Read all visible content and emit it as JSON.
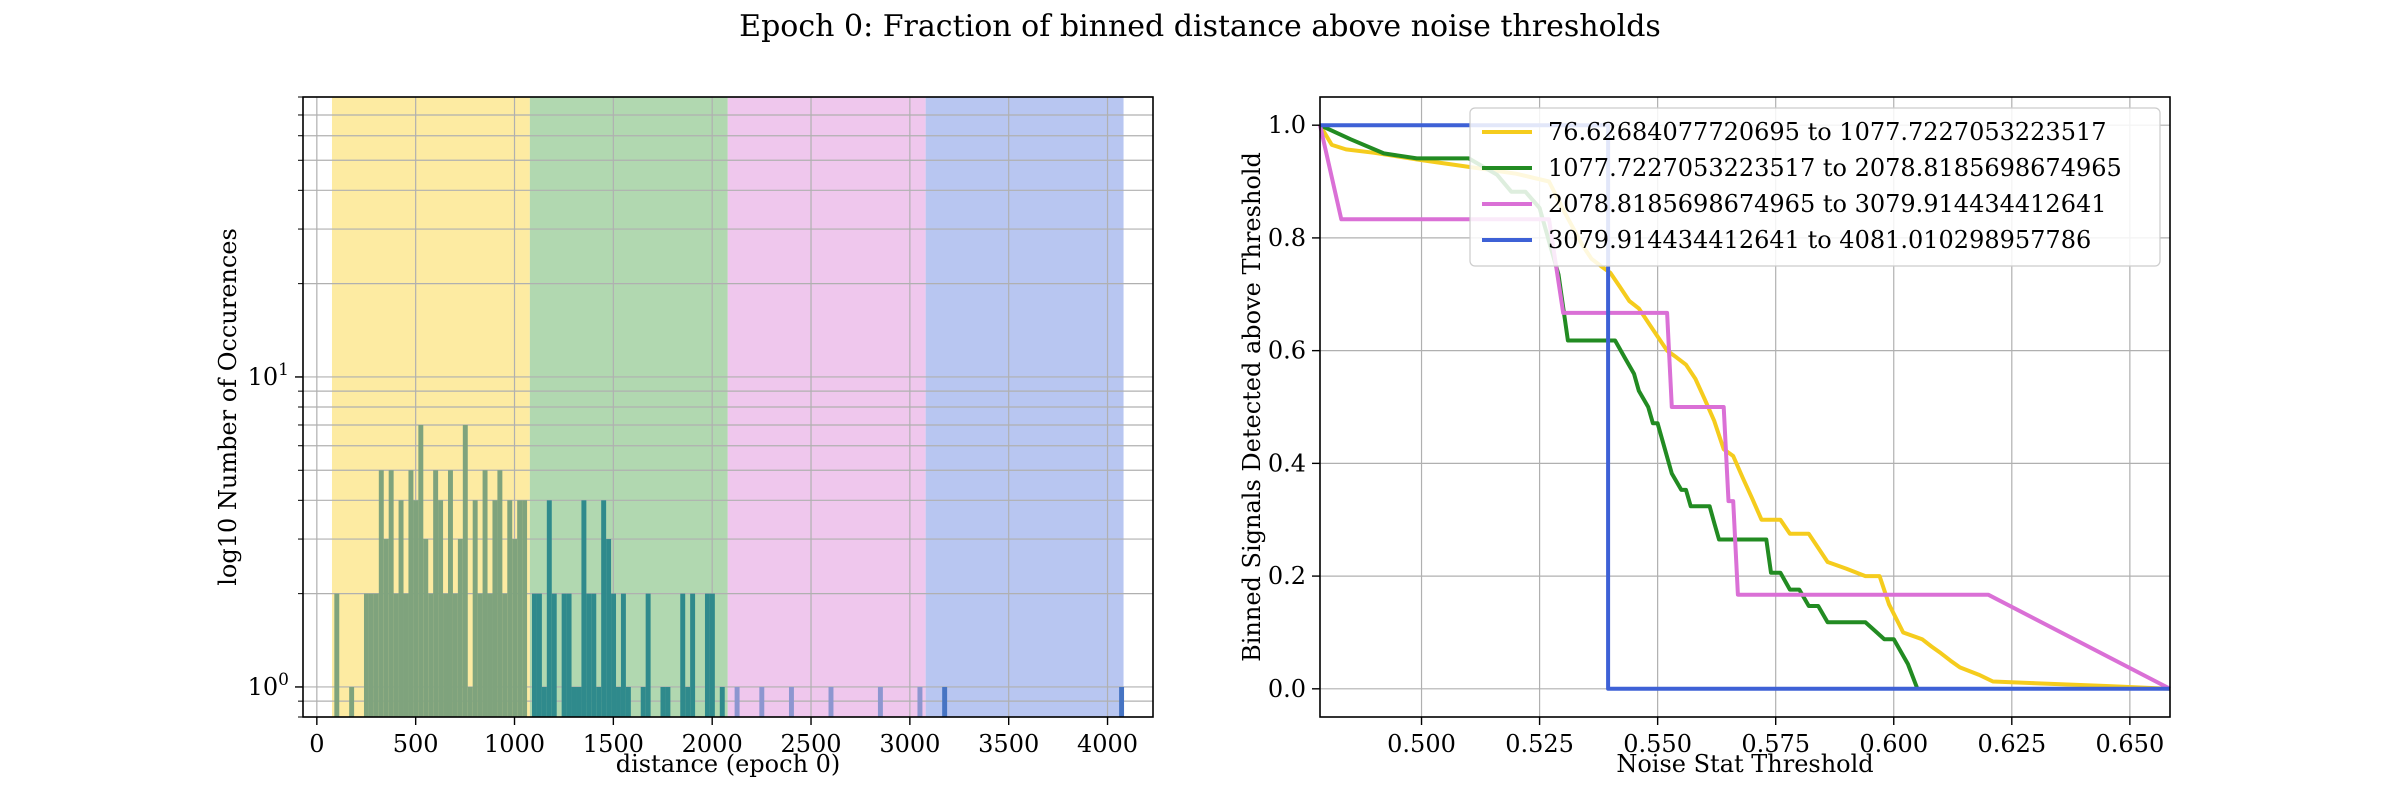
{
  "figure_title": "Epoch 0: Fraction of binned distance above noise thresholds",
  "chart_data": [
    {
      "type": "bar",
      "title": "",
      "xlabel": "distance (epoch 0)",
      "ylabel": "log10 Number of Occurences",
      "yscale": "log",
      "xlim": [
        -70,
        4230
      ],
      "ylim": [
        0.8,
        80
      ],
      "xticks": [
        0,
        500,
        1000,
        1500,
        2000,
        2500,
        3000,
        3500,
        4000
      ],
      "yticks": [
        {
          "value": 1,
          "base": "10",
          "exp": "0"
        },
        {
          "value": 10,
          "base": "10",
          "exp": "1"
        }
      ],
      "grid": true,
      "bands": [
        {
          "range": [
            76.6,
            1077.7
          ],
          "color": "#fdeba2"
        },
        {
          "range": [
            1077.7,
            2078.8
          ],
          "color": "#b1d8b0"
        },
        {
          "range": [
            2078.8,
            3079.9
          ],
          "color": "#efc7ed"
        },
        {
          "range": [
            3079.9,
            4081.0
          ],
          "color": "#b8c6f1"
        }
      ],
      "bar_colors": [
        "#7fa37d",
        "#2f8a8c",
        "#8d96d0",
        "#4674c3"
      ],
      "bars": [
        {
          "x": 101,
          "count": 2
        },
        {
          "x": 176,
          "count": 1
        },
        {
          "x": 251,
          "count": 2
        },
        {
          "x": 276,
          "count": 2
        },
        {
          "x": 301,
          "count": 2
        },
        {
          "x": 326,
          "count": 5
        },
        {
          "x": 351,
          "count": 3
        },
        {
          "x": 376,
          "count": 5
        },
        {
          "x": 401,
          "count": 2
        },
        {
          "x": 426,
          "count": 4
        },
        {
          "x": 451,
          "count": 2
        },
        {
          "x": 476,
          "count": 5
        },
        {
          "x": 501,
          "count": 4
        },
        {
          "x": 526,
          "count": 7
        },
        {
          "x": 551,
          "count": 3
        },
        {
          "x": 576,
          "count": 2
        },
        {
          "x": 601,
          "count": 5
        },
        {
          "x": 626,
          "count": 4
        },
        {
          "x": 651,
          "count": 2
        },
        {
          "x": 676,
          "count": 5
        },
        {
          "x": 701,
          "count": 2
        },
        {
          "x": 726,
          "count": 3
        },
        {
          "x": 751,
          "count": 7
        },
        {
          "x": 776,
          "count": 1
        },
        {
          "x": 801,
          "count": 4
        },
        {
          "x": 826,
          "count": 2
        },
        {
          "x": 851,
          "count": 5
        },
        {
          "x": 876,
          "count": 2
        },
        {
          "x": 901,
          "count": 4
        },
        {
          "x": 926,
          "count": 5
        },
        {
          "x": 951,
          "count": 2
        },
        {
          "x": 976,
          "count": 4
        },
        {
          "x": 1001,
          "count": 3
        },
        {
          "x": 1026,
          "count": 4
        },
        {
          "x": 1051,
          "count": 4
        },
        {
          "x": 1101,
          "count": 2
        },
        {
          "x": 1126,
          "count": 2
        },
        {
          "x": 1151,
          "count": 1
        },
        {
          "x": 1176,
          "count": 4
        },
        {
          "x": 1201,
          "count": 2
        },
        {
          "x": 1251,
          "count": 2
        },
        {
          "x": 1276,
          "count": 2
        },
        {
          "x": 1301,
          "count": 1
        },
        {
          "x": 1326,
          "count": 1
        },
        {
          "x": 1351,
          "count": 4
        },
        {
          "x": 1376,
          "count": 2
        },
        {
          "x": 1401,
          "count": 2
        },
        {
          "x": 1426,
          "count": 1
        },
        {
          "x": 1451,
          "count": 4
        },
        {
          "x": 1476,
          "count": 3
        },
        {
          "x": 1501,
          "count": 2
        },
        {
          "x": 1526,
          "count": 1
        },
        {
          "x": 1551,
          "count": 2
        },
        {
          "x": 1576,
          "count": 1
        },
        {
          "x": 1651,
          "count": 1
        },
        {
          "x": 1676,
          "count": 2
        },
        {
          "x": 1751,
          "count": 1
        },
        {
          "x": 1776,
          "count": 1
        },
        {
          "x": 1851,
          "count": 2
        },
        {
          "x": 1876,
          "count": 1
        },
        {
          "x": 1901,
          "count": 2
        },
        {
          "x": 1976,
          "count": 2
        },
        {
          "x": 2001,
          "count": 2
        },
        {
          "x": 2051,
          "count": 1
        },
        {
          "x": 2126,
          "count": 1
        },
        {
          "x": 2251,
          "count": 1
        },
        {
          "x": 2401,
          "count": 1
        },
        {
          "x": 2601,
          "count": 1
        },
        {
          "x": 2851,
          "count": 1
        },
        {
          "x": 3051,
          "count": 1
        },
        {
          "x": 3176,
          "count": 1
        },
        {
          "x": 4071,
          "count": 1
        }
      ]
    },
    {
      "type": "line",
      "title": "",
      "xlabel": "Noise Stat Threshold",
      "ylabel": "Binned Signals Detected above Threshold",
      "xlim": [
        0.4785,
        0.6585
      ],
      "ylim": [
        -0.05,
        1.05
      ],
      "xticks": [
        0.5,
        0.525,
        0.55,
        0.575,
        0.6,
        0.625,
        0.65
      ],
      "xtick_labels": [
        "0.500",
        "0.525",
        "0.550",
        "0.575",
        "0.600",
        "0.625",
        "0.650"
      ],
      "yticks": [
        0.0,
        0.2,
        0.4,
        0.6,
        0.8,
        1.0
      ],
      "ytick_labels": [
        "0.0",
        "0.2",
        "0.4",
        "0.6",
        "0.8",
        "1.0"
      ],
      "grid": true,
      "legend_position": "top-right",
      "series": [
        {
          "name": "76.62684077720695 to 1077.7227053223517",
          "color": "#f5cc1d",
          "points": [
            [
              0.4785,
              1.0
            ],
            [
              0.481,
              0.965
            ],
            [
              0.484,
              0.957
            ],
            [
              0.49,
              0.951
            ],
            [
              0.5,
              0.938
            ],
            [
              0.51,
              0.926
            ],
            [
              0.52,
              0.914
            ],
            [
              0.527,
              0.9
            ],
            [
              0.53,
              0.85
            ],
            [
              0.534,
              0.788
            ],
            [
              0.536,
              0.763
            ],
            [
              0.538,
              0.75
            ],
            [
              0.54,
              0.738
            ],
            [
              0.542,
              0.713
            ],
            [
              0.544,
              0.688
            ],
            [
              0.546,
              0.675
            ],
            [
              0.548,
              0.65
            ],
            [
              0.55,
              0.625
            ],
            [
              0.552,
              0.6
            ],
            [
              0.554,
              0.588
            ],
            [
              0.556,
              0.575
            ],
            [
              0.558,
              0.55
            ],
            [
              0.56,
              0.513
            ],
            [
              0.562,
              0.475
            ],
            [
              0.564,
              0.425
            ],
            [
              0.566,
              0.413
            ],
            [
              0.568,
              0.375
            ],
            [
              0.57,
              0.338
            ],
            [
              0.572,
              0.3
            ],
            [
              0.576,
              0.3
            ],
            [
              0.578,
              0.275
            ],
            [
              0.582,
              0.275
            ],
            [
              0.584,
              0.25
            ],
            [
              0.586,
              0.225
            ],
            [
              0.59,
              0.213
            ],
            [
              0.594,
              0.2
            ],
            [
              0.597,
              0.2
            ],
            [
              0.599,
              0.15
            ],
            [
              0.602,
              0.1
            ],
            [
              0.606,
              0.088
            ],
            [
              0.608,
              0.075
            ],
            [
              0.61,
              0.063
            ],
            [
              0.612,
              0.05
            ],
            [
              0.614,
              0.038
            ],
            [
              0.618,
              0.025
            ],
            [
              0.621,
              0.013
            ],
            [
              0.63,
              0.01
            ],
            [
              0.645,
              0.005
            ],
            [
              0.6585,
              0.0
            ]
          ]
        },
        {
          "name": "1077.7227053223517 to 2078.8185698674965",
          "color": "#228b22",
          "points": [
            [
              0.4785,
              1.0
            ],
            [
              0.485,
              0.975
            ],
            [
              0.492,
              0.95
            ],
            [
              0.499,
              0.941
            ],
            [
              0.51,
              0.941
            ],
            [
              0.516,
              0.912
            ],
            [
              0.519,
              0.882
            ],
            [
              0.522,
              0.882
            ],
            [
              0.525,
              0.853
            ],
            [
              0.527,
              0.794
            ],
            [
              0.529,
              0.735
            ],
            [
              0.531,
              0.618
            ],
            [
              0.541,
              0.618
            ],
            [
              0.543,
              0.588
            ],
            [
              0.545,
              0.559
            ],
            [
              0.546,
              0.529
            ],
            [
              0.548,
              0.5
            ],
            [
              0.549,
              0.471
            ],
            [
              0.55,
              0.471
            ],
            [
              0.551,
              0.441
            ],
            [
              0.553,
              0.382
            ],
            [
              0.555,
              0.353
            ],
            [
              0.556,
              0.353
            ],
            [
              0.557,
              0.324
            ],
            [
              0.561,
              0.324
            ],
            [
              0.562,
              0.294
            ],
            [
              0.563,
              0.265
            ],
            [
              0.573,
              0.265
            ],
            [
              0.574,
              0.206
            ],
            [
              0.576,
              0.206
            ],
            [
              0.578,
              0.176
            ],
            [
              0.58,
              0.176
            ],
            [
              0.582,
              0.147
            ],
            [
              0.584,
              0.147
            ],
            [
              0.586,
              0.118
            ],
            [
              0.594,
              0.118
            ],
            [
              0.596,
              0.103
            ],
            [
              0.598,
              0.088
            ],
            [
              0.6,
              0.088
            ],
            [
              0.603,
              0.044
            ],
            [
              0.605,
              0.0
            ]
          ]
        },
        {
          "name": "2078.8185698674965 to 3079.914434412641",
          "color": "#da70d6",
          "points": [
            [
              0.4785,
              1.0
            ],
            [
              0.483,
              0.833
            ],
            [
              0.527,
              0.833
            ],
            [
              0.53,
              0.667
            ],
            [
              0.552,
              0.667
            ],
            [
              0.553,
              0.5
            ],
            [
              0.564,
              0.5
            ],
            [
              0.565,
              0.333
            ],
            [
              0.566,
              0.333
            ],
            [
              0.567,
              0.167
            ],
            [
              0.62,
              0.167
            ],
            [
              0.6585,
              0.0
            ]
          ]
        },
        {
          "name": "3079.914434412641 to 4081.010298957786",
          "color": "#3e61d6",
          "points": [
            [
              0.4785,
              1.0
            ],
            [
              0.5395,
              1.0
            ],
            [
              0.5395,
              0.0
            ],
            [
              0.6585,
              0.0
            ]
          ]
        }
      ]
    }
  ]
}
